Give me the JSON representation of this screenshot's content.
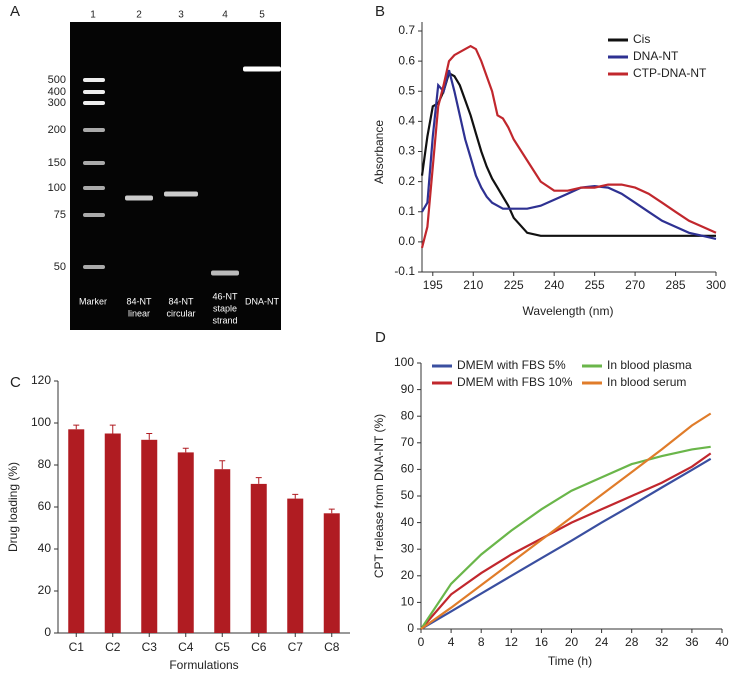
{
  "gel": {
    "panel": "A",
    "lane_numbers": [
      1,
      2,
      3,
      4,
      5
    ],
    "marker_sizes": [
      500,
      400,
      300,
      200,
      150,
      100,
      75,
      50
    ],
    "lane_labels": [
      [
        "Marker"
      ],
      [
        "84-NT",
        "linear"
      ],
      [
        "84-NT",
        "circular"
      ],
      [
        "46-NT",
        "staple",
        "strand"
      ],
      [
        "DNA-NT"
      ]
    ]
  },
  "chart_data": [
    {
      "type": "line",
      "panel": "B",
      "x_label": "Wavelength (nm)",
      "y_label": "Absorbance",
      "x": [
        191,
        193,
        195,
        197,
        199,
        201,
        203,
        205,
        207,
        209,
        211,
        213,
        215,
        217,
        219,
        221,
        223,
        225,
        230,
        235,
        240,
        245,
        250,
        255,
        260,
        265,
        270,
        275,
        280,
        285,
        290,
        295,
        300
      ],
      "series": [
        {
          "name": "Cis",
          "color": "#111111",
          "values": [
            0.22,
            0.35,
            0.45,
            0.46,
            0.5,
            0.56,
            0.55,
            0.52,
            0.47,
            0.42,
            0.36,
            0.3,
            0.25,
            0.21,
            0.18,
            0.15,
            0.12,
            0.08,
            0.03,
            0.02,
            0.02,
            0.02,
            0.02,
            0.02,
            0.02,
            0.02,
            0.02,
            0.02,
            0.02,
            0.02,
            0.02,
            0.02,
            0.02
          ]
        },
        {
          "name": "DNA-NT",
          "color": "#2e3192",
          "values": [
            0.1,
            0.13,
            0.35,
            0.52,
            0.5,
            0.57,
            0.5,
            0.42,
            0.34,
            0.28,
            0.22,
            0.18,
            0.15,
            0.13,
            0.12,
            0.11,
            0.11,
            0.11,
            0.11,
            0.12,
            0.14,
            0.16,
            0.18,
            0.185,
            0.18,
            0.16,
            0.13,
            0.1,
            0.07,
            0.05,
            0.03,
            0.02,
            0.01
          ]
        },
        {
          "name": "CTP-DNA-NT",
          "color": "#c1272d",
          "values": [
            -0.02,
            0.05,
            0.25,
            0.45,
            0.52,
            0.6,
            0.62,
            0.63,
            0.64,
            0.65,
            0.64,
            0.6,
            0.55,
            0.5,
            0.42,
            0.41,
            0.38,
            0.34,
            0.27,
            0.2,
            0.17,
            0.17,
            0.18,
            0.18,
            0.19,
            0.19,
            0.18,
            0.16,
            0.13,
            0.1,
            0.07,
            0.05,
            0.03
          ]
        }
      ],
      "xlim": [
        191,
        300
      ],
      "xticks": [
        195,
        210,
        225,
        240,
        255,
        270,
        285,
        300
      ],
      "ylim": [
        -0.1,
        0.7
      ],
      "yticks": [
        -0.1,
        {
          "value": 0,
          "label": "0.0"
        },
        0.1,
        0.2,
        0.3,
        0.4,
        0.5,
        0.6,
        0.7
      ],
      "legend": "upper right"
    },
    {
      "type": "bar",
      "panel": "C",
      "x_label": "Formulations",
      "y_label": "Drug loading (%)",
      "categories": [
        "C1",
        "C2",
        "C3",
        "C4",
        "C5",
        "C6",
        "C7",
        "C8"
      ],
      "values": [
        97,
        95,
        92,
        86,
        78,
        71,
        64,
        57
      ],
      "errors": [
        2,
        4,
        3,
        2,
        4,
        3,
        2,
        2
      ],
      "color": "#b01c22",
      "ylim": [
        0,
        120
      ],
      "yticks": [
        0,
        20,
        40,
        60,
        80,
        100,
        120
      ]
    },
    {
      "type": "line",
      "panel": "D",
      "x_label": "Time (h)",
      "y_label": "CPT release from DNA-NT (%)",
      "x": [
        0,
        4,
        8,
        12,
        16,
        20,
        24,
        28,
        32,
        36,
        38.5
      ],
      "series": [
        {
          "name": "DMEM with FBS 5%",
          "color": "#3a4fa0",
          "values": [
            0,
            6.6,
            13.3,
            20,
            26.6,
            33.2,
            40,
            46.5,
            53.2,
            59.8,
            64
          ]
        },
        {
          "name": "DMEM with FBS 10%",
          "color": "#c1272d",
          "values": [
            0,
            13,
            21,
            28,
            34,
            40,
            45,
            50,
            55,
            61,
            66
          ]
        },
        {
          "name": "In blood plasma",
          "color": "#6ab64a",
          "values": [
            0,
            17,
            28,
            37,
            45,
            52,
            57,
            62,
            65,
            67.5,
            68.5
          ]
        },
        {
          "name": "In blood serum",
          "color": "#e07c2a",
          "values": [
            0,
            8,
            16.5,
            25,
            33.5,
            42,
            50.5,
            59,
            67.5,
            76.5,
            81
          ]
        }
      ],
      "xlim": [
        0,
        40
      ],
      "xticks": [
        0,
        4,
        8,
        12,
        16,
        20,
        24,
        28,
        32,
        36,
        40
      ],
      "ylim": [
        0,
        100
      ],
      "yticks": [
        0,
        10,
        20,
        30,
        40,
        50,
        60,
        70,
        80,
        90,
        100
      ],
      "legend": "upper left"
    }
  ]
}
